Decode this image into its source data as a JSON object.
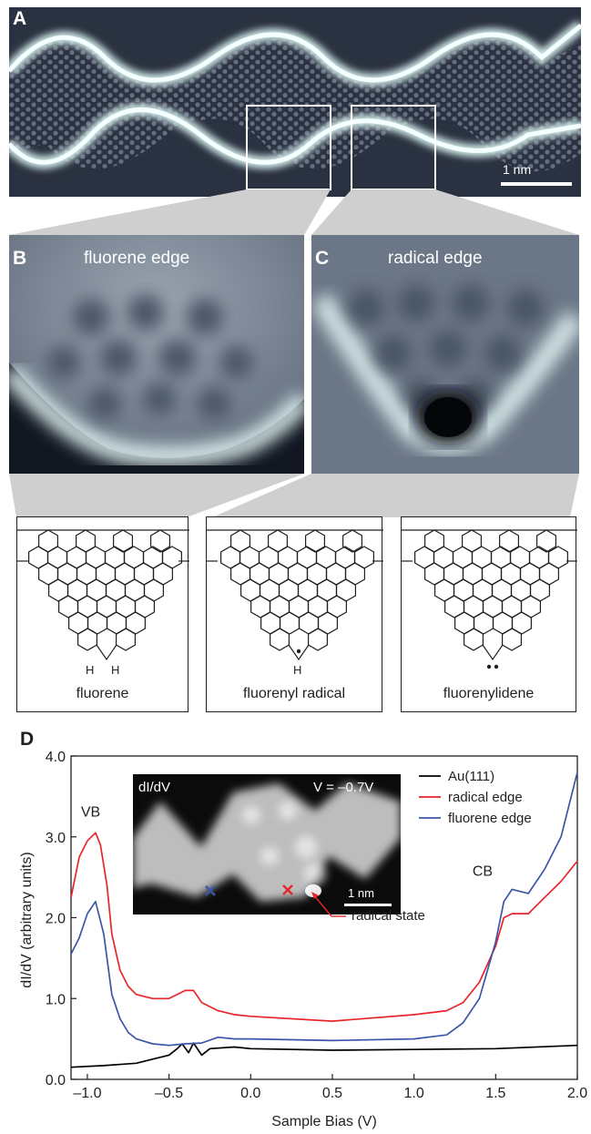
{
  "panels": {
    "a": {
      "label": "A",
      "scale_bar": "1 nm"
    },
    "b": {
      "label": "B",
      "title": "fluorene edge"
    },
    "c": {
      "label": "C",
      "title": "radical edge"
    },
    "d": {
      "label": "D"
    }
  },
  "structures": [
    {
      "caption": "fluorene",
      "marks": [
        "H",
        "H"
      ]
    },
    {
      "caption": "fluorenyl radical",
      "marks": [
        "H"
      ]
    },
    {
      "caption": "fluorenylidene",
      "marks": []
    }
  ],
  "inset": {
    "title_left": "dI/dV",
    "title_right": "V = –0.7V",
    "scale_bar": "1 nm",
    "annotation": "radical state",
    "colors": {
      "radical_marker": "#e8262a",
      "fluorene_marker": "#3a56a7"
    }
  },
  "chart_data": {
    "type": "line",
    "xlabel": "Sample Bias (V)",
    "ylabel": "dI/dV (arbitrary units)",
    "xlim": [
      -1.1,
      2.0
    ],
    "ylim": [
      0.0,
      4.0
    ],
    "xticks": [
      "–1.0",
      "–0.5",
      "0.0",
      "0.5",
      "1.0",
      "1.5",
      "2.0"
    ],
    "xtick_values": [
      -1.0,
      -0.5,
      0.0,
      0.5,
      1.0,
      1.5,
      2.0
    ],
    "yticks": [
      "0.0",
      "1.0",
      "2.0",
      "3.0",
      "4.0"
    ],
    "ytick_values": [
      0.0,
      1.0,
      2.0,
      3.0,
      4.0
    ],
    "annotations": [
      {
        "text": "VB",
        "x": -0.98,
        "y": 3.25
      },
      {
        "text": "CB",
        "x": 1.42,
        "y": 2.52
      }
    ],
    "legend_position": "top-right",
    "series": [
      {
        "name": "Au(111)",
        "color": "#000000",
        "x": [
          -1.1,
          -0.9,
          -0.7,
          -0.6,
          -0.5,
          -0.45,
          -0.42,
          -0.38,
          -0.35,
          -0.3,
          -0.25,
          -0.1,
          0.0,
          0.5,
          1.0,
          1.5,
          2.0
        ],
        "y": [
          0.15,
          0.17,
          0.2,
          0.25,
          0.3,
          0.38,
          0.44,
          0.33,
          0.45,
          0.3,
          0.38,
          0.4,
          0.38,
          0.36,
          0.37,
          0.38,
          0.42
        ]
      },
      {
        "name": "radical edge",
        "color": "#e8262a",
        "x": [
          -1.1,
          -1.05,
          -1.0,
          -0.95,
          -0.92,
          -0.88,
          -0.85,
          -0.8,
          -0.75,
          -0.7,
          -0.6,
          -0.5,
          -0.4,
          -0.35,
          -0.3,
          -0.2,
          -0.1,
          0.0,
          0.5,
          1.0,
          1.2,
          1.3,
          1.4,
          1.5,
          1.55,
          1.6,
          1.7,
          1.8,
          1.9,
          2.0
        ],
        "y": [
          2.25,
          2.75,
          2.95,
          3.05,
          2.9,
          2.4,
          1.8,
          1.35,
          1.15,
          1.05,
          1.0,
          1.0,
          1.1,
          1.1,
          0.95,
          0.85,
          0.8,
          0.78,
          0.72,
          0.8,
          0.85,
          0.95,
          1.2,
          1.65,
          2.0,
          2.05,
          2.05,
          2.25,
          2.45,
          2.7
        ]
      },
      {
        "name": "fluorene edge",
        "color": "#3a56a7",
        "x": [
          -1.1,
          -1.05,
          -1.0,
          -0.95,
          -0.9,
          -0.85,
          -0.8,
          -0.75,
          -0.7,
          -0.6,
          -0.5,
          -0.4,
          -0.3,
          -0.2,
          -0.1,
          0.0,
          0.5,
          1.0,
          1.2,
          1.3,
          1.4,
          1.5,
          1.55,
          1.6,
          1.7,
          1.8,
          1.9,
          2.0
        ],
        "y": [
          1.55,
          1.75,
          2.05,
          2.2,
          1.8,
          1.05,
          0.75,
          0.58,
          0.5,
          0.44,
          0.42,
          0.44,
          0.45,
          0.52,
          0.5,
          0.5,
          0.48,
          0.5,
          0.55,
          0.7,
          1.0,
          1.7,
          2.2,
          2.35,
          2.3,
          2.6,
          3.0,
          3.8
        ]
      }
    ]
  }
}
